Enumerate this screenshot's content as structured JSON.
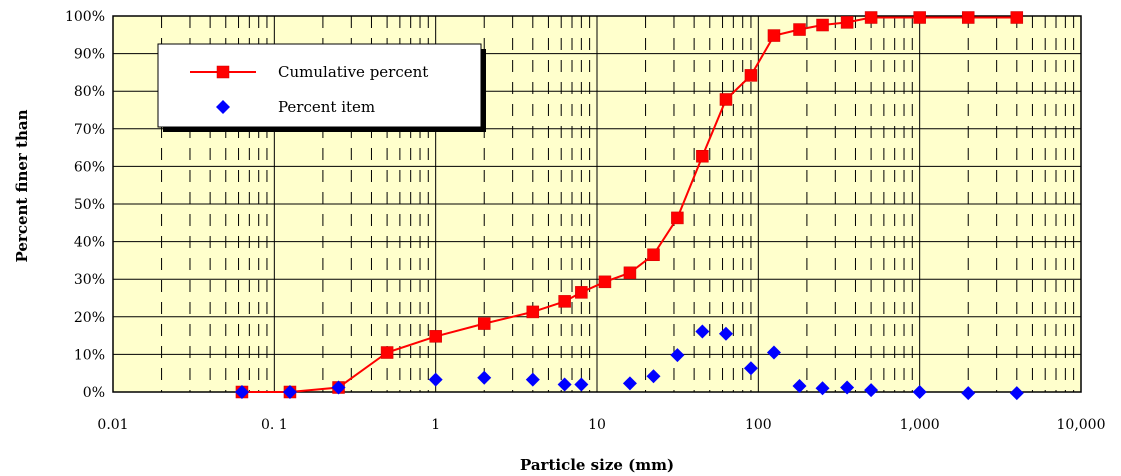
{
  "chart_data": {
    "type": "scatter",
    "xlabel": "Particle size (mm)",
    "ylabel": "Percent finer than",
    "xscale": "log",
    "xlim": [
      0.01,
      10000
    ],
    "ylim": [
      0,
      100
    ],
    "x_tick_labels": [
      "0.01",
      "0. 1",
      "1",
      "10",
      "100",
      "1,000",
      "10,000"
    ],
    "y_tick_labels": [
      "0%",
      "10%",
      "20%",
      "30%",
      "40%",
      "50%",
      "60%",
      "70%",
      "80%",
      "90%",
      "100%"
    ],
    "grid": true,
    "legend_position": "top-left",
    "series": [
      {
        "name": "Cumulative percent",
        "style": "line-with-square-markers",
        "color": "#ff0000",
        "x": [
          0.063,
          0.125,
          0.25,
          0.5,
          1,
          2,
          4,
          6.3,
          8,
          11.2,
          16,
          22.4,
          31.5,
          45,
          63,
          90,
          125,
          180,
          250,
          355,
          500,
          1000,
          2000,
          4000
        ],
        "y": [
          0,
          0,
          1.2,
          10.5,
          14.8,
          18.2,
          21.3,
          24.1,
          26.5,
          29.3,
          31.7,
          36.5,
          46.3,
          62.7,
          77.8,
          84.2,
          94.8,
          96.4,
          97.6,
          98.3,
          99.6,
          99.6,
          99.6,
          99.6
        ]
      },
      {
        "name": "Percent item",
        "style": "diamond-markers",
        "color": "#0000ff",
        "x": [
          0.063,
          0.125,
          0.25,
          1,
          2,
          4,
          6.3,
          8,
          16,
          22.4,
          31.5,
          45,
          63,
          90,
          125,
          180,
          250,
          355,
          500,
          1000,
          2000,
          4000
        ],
        "y": [
          0,
          0,
          1.2,
          3.3,
          3.8,
          3.3,
          2,
          2,
          2.3,
          4.2,
          9.8,
          16.1,
          15.5,
          6.3,
          10.5,
          1.6,
          1,
          1.2,
          0.5,
          0,
          -0.3,
          -0.3
        ]
      }
    ]
  }
}
